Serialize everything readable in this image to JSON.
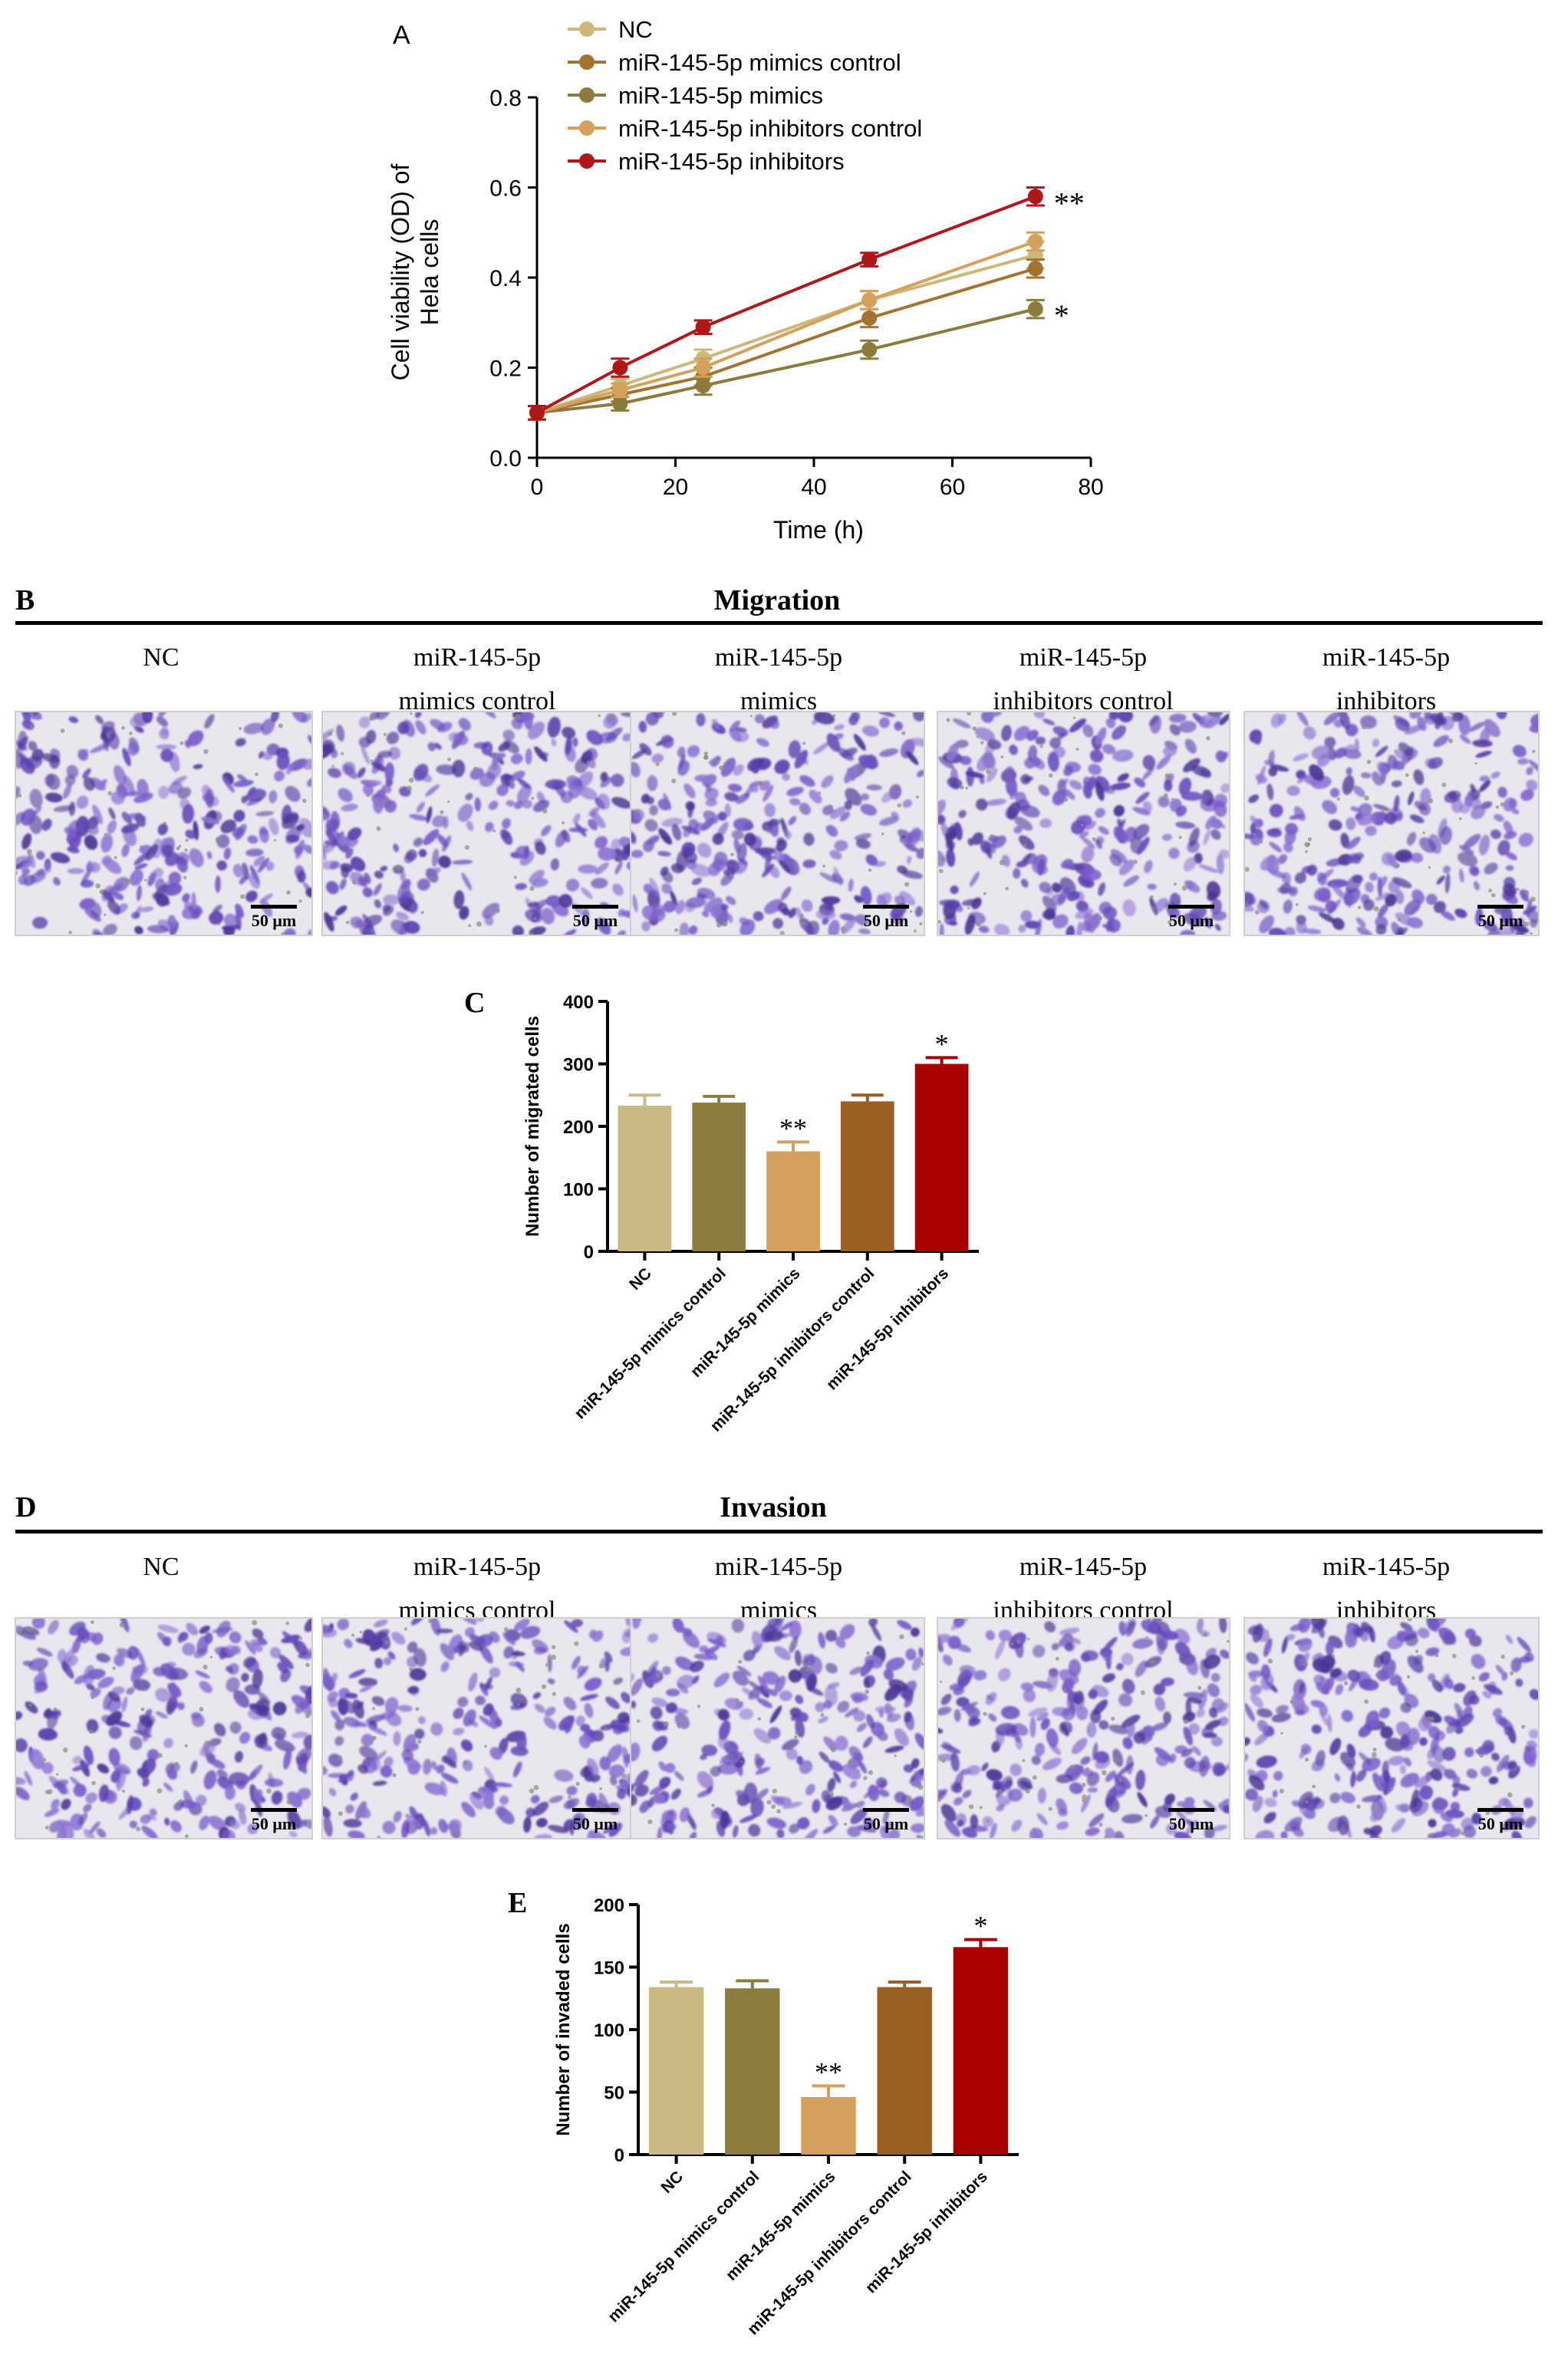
{
  "figure": {
    "panel_labels": {
      "a": "A",
      "b": "B",
      "c": "C",
      "d": "D",
      "e": "E"
    }
  },
  "chart_data": [
    {
      "panel": "A",
      "type": "line",
      "xlabel": "Time (h)",
      "ylabel": "Cell viability (OD) of Hela cells",
      "xlim": [
        0,
        80
      ],
      "ylim": [
        0.0,
        0.8
      ],
      "xticks": [
        "0",
        "20",
        "40",
        "60",
        "80"
      ],
      "yticks": [
        "0.0",
        "0.2",
        "0.4",
        "0.6",
        "0.8"
      ],
      "x": [
        0,
        12,
        24,
        48,
        72
      ],
      "legend_position": "top",
      "series": [
        {
          "name": "NC",
          "color": "#cdb878",
          "values": [
            0.1,
            0.16,
            0.22,
            0.35,
            0.45
          ],
          "errors": [
            0.015,
            0.015,
            0.02,
            0.02,
            0.03
          ]
        },
        {
          "name": "miR-145-5p mimics control",
          "color": "#a4742e",
          "values": [
            0.1,
            0.14,
            0.18,
            0.31,
            0.42
          ],
          "errors": [
            0.015,
            0.015,
            0.02,
            0.02,
            0.02
          ]
        },
        {
          "name": "miR-145-5p mimics",
          "color": "#8c7c3c",
          "values": [
            0.1,
            0.12,
            0.16,
            0.24,
            0.33
          ],
          "errors": [
            0.015,
            0.015,
            0.02,
            0.02,
            0.02
          ]
        },
        {
          "name": "miR-145-5p inhibitors control",
          "color": "#d4a05a",
          "values": [
            0.1,
            0.15,
            0.2,
            0.35,
            0.48
          ],
          "errors": [
            0.015,
            0.015,
            0.02,
            0.02,
            0.02
          ]
        },
        {
          "name": "miR-145-5p inhibitors",
          "color": "#b01818",
          "values": [
            0.1,
            0.2,
            0.29,
            0.44,
            0.58
          ],
          "errors": [
            0.015,
            0.02,
            0.015,
            0.015,
            0.02
          ]
        }
      ],
      "annotations": [
        {
          "series": "miR-145-5p inhibitors",
          "x": 72,
          "text": "**"
        },
        {
          "series": "miR-145-5p mimics",
          "x": 72,
          "text": "*"
        }
      ]
    },
    {
      "panel": "C",
      "type": "bar",
      "ylabel": "Number of migrated cells",
      "ylim": [
        0,
        400
      ],
      "yticks": [
        "0",
        "100",
        "200",
        "300",
        "400"
      ],
      "categories": [
        "NC",
        "miR-145-5p mimics control",
        "miR-145-5p mimics",
        "miR-145-5p inhibitors control",
        "miR-145-5p inhibitors"
      ],
      "values": [
        233,
        238,
        160,
        240,
        300
      ],
      "errors": [
        17,
        10,
        15,
        10,
        10
      ],
      "colors": [
        "#c9ba84",
        "#8c7d3e",
        "#d39f5a",
        "#9b5f22",
        "#a80000"
      ],
      "annotations": [
        "",
        "",
        "**",
        "",
        "*"
      ]
    },
    {
      "panel": "E",
      "type": "bar",
      "ylabel": "Number of invaded cells",
      "ylim": [
        0,
        200
      ],
      "yticks": [
        "0",
        "50",
        "100",
        "150",
        "200"
      ],
      "categories": [
        "NC",
        "miR-145-5p mimics control",
        "miR-145-5p mimics",
        "miR-145-5p inhibitors control",
        "miR-145-5p inhibitors"
      ],
      "values": [
        134,
        133,
        46,
        134,
        166
      ],
      "errors": [
        4,
        6,
        9,
        4,
        6
      ],
      "colors": [
        "#c9ba84",
        "#8c7d3e",
        "#d39f5a",
        "#9b5f22",
        "#a80000"
      ],
      "annotations": [
        "",
        "",
        "**",
        "",
        "*"
      ]
    }
  ],
  "micrographs": {
    "migration": {
      "title": "Migration",
      "labels": [
        [
          "NC",
          ""
        ],
        [
          "miR-145-5p",
          "mimics control"
        ],
        [
          "miR-145-5p",
          "mimics"
        ],
        [
          "miR-145-5p",
          "inhibitors control"
        ],
        [
          "miR-145-5p",
          "inhibitors"
        ]
      ],
      "scale_bar": "50 μm"
    },
    "invasion": {
      "title": "Invasion",
      "labels": [
        [
          "NC",
          ""
        ],
        [
          "miR-145-5p",
          "mimics control"
        ],
        [
          "miR-145-5p",
          "mimics"
        ],
        [
          "miR-145-5p",
          "inhibitors control"
        ],
        [
          "miR-145-5p",
          "inhibitors"
        ]
      ],
      "scale_bar": "50 μm"
    },
    "stain_colors": [
      "#6a4fc0",
      "#7a5ccb",
      "#5a3fae",
      "#8d74d4",
      "#4b3596"
    ]
  }
}
